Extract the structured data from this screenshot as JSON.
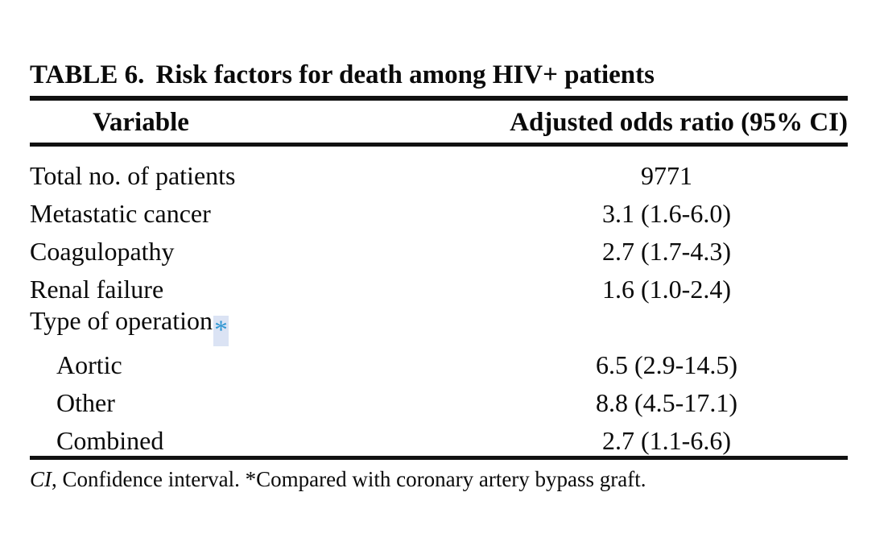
{
  "table": {
    "title_label": "TABLE 6.",
    "title_text": "Risk factors for death among HIV+ patients",
    "columns": {
      "variable": "Variable",
      "odds_ratio": "Adjusted odds ratio (95% CI)"
    },
    "rows": [
      {
        "label": "Total no. of patients",
        "value": "9771",
        "indent": false
      },
      {
        "label": "Metastatic cancer",
        "value": "3.1 (1.6-6.0)",
        "indent": false
      },
      {
        "label": "Coagulopathy",
        "value": "2.7 (1.7-4.3)",
        "indent": false
      },
      {
        "label": "Renal failure",
        "value": "1.6 (1.0-2.4)",
        "indent": false
      },
      {
        "label": "Type of operation",
        "value": "",
        "marker": "*",
        "indent": false
      },
      {
        "label": "Aortic",
        "value": "6.5 (2.9-14.5)",
        "indent": true
      },
      {
        "label": "Other",
        "value": "8.8 (4.5-17.1)",
        "indent": true
      },
      {
        "label": "Combined",
        "value": "2.7 (1.1-6.6)",
        "indent": true
      }
    ],
    "footnote_abbr": "CI",
    "footnote_text": ", Confidence interval. *Compared with coronary artery bypass graft."
  },
  "colors": {
    "text": "#0a0a0a",
    "rule": "#111111",
    "marker-blue": "#2e96d2",
    "marker-highlight": "#dbe3f4",
    "background": "#ffffff"
  }
}
